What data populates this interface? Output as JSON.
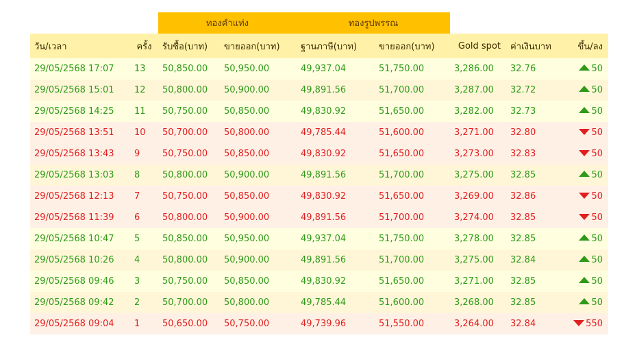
{
  "groups": {
    "bar": "ทองคำแท่ง",
    "ornament": "ทองรูปพรรณ"
  },
  "headers": {
    "datetime": "วัน/เวลา",
    "round": "ครั้ง",
    "bar_buy": "รับซื้อ(บาท)",
    "bar_sell": "ขายออก(บาท)",
    "orn_base": "ฐานภาษี(บาท)",
    "orn_sell": "ขายออก(บาท)",
    "gold_spot": "Gold spot",
    "thb": "ค่าเงินบาท",
    "change": "ขึ้น/ลง"
  },
  "colors": {
    "up": "#2e9a18",
    "down": "#e02020",
    "group_header": "#ffc000",
    "column_header": "#fff2a8"
  },
  "rows": [
    {
      "datetime": "29/05/2568 17:07",
      "round": "13",
      "bar_buy": "50,850.00",
      "bar_sell": "50,950.00",
      "orn_base": "49,937.04",
      "orn_sell": "51,750.00",
      "gold_spot": "3,286.00",
      "thb": "32.76",
      "direction": "up",
      "change": "50"
    },
    {
      "datetime": "29/05/2568 15:01",
      "round": "12",
      "bar_buy": "50,800.00",
      "bar_sell": "50,900.00",
      "orn_base": "49,891.56",
      "orn_sell": "51,700.00",
      "gold_spot": "3,287.00",
      "thb": "32.72",
      "direction": "up",
      "change": "50"
    },
    {
      "datetime": "29/05/2568 14:25",
      "round": "11",
      "bar_buy": "50,750.00",
      "bar_sell": "50,850.00",
      "orn_base": "49,830.92",
      "orn_sell": "51,650.00",
      "gold_spot": "3,282.00",
      "thb": "32.73",
      "direction": "up",
      "change": "50"
    },
    {
      "datetime": "29/05/2568 13:51",
      "round": "10",
      "bar_buy": "50,700.00",
      "bar_sell": "50,800.00",
      "orn_base": "49,785.44",
      "orn_sell": "51,600.00",
      "gold_spot": "3,271.00",
      "thb": "32.80",
      "direction": "down",
      "change": "50"
    },
    {
      "datetime": "29/05/2568 13:43",
      "round": "9",
      "bar_buy": "50,750.00",
      "bar_sell": "50,850.00",
      "orn_base": "49,830.92",
      "orn_sell": "51,650.00",
      "gold_spot": "3,273.00",
      "thb": "32.83",
      "direction": "down",
      "change": "50"
    },
    {
      "datetime": "29/05/2568 13:03",
      "round": "8",
      "bar_buy": "50,800.00",
      "bar_sell": "50,900.00",
      "orn_base": "49,891.56",
      "orn_sell": "51,700.00",
      "gold_spot": "3,275.00",
      "thb": "32.85",
      "direction": "up",
      "change": "50"
    },
    {
      "datetime": "29/05/2568 12:13",
      "round": "7",
      "bar_buy": "50,750.00",
      "bar_sell": "50,850.00",
      "orn_base": "49,830.92",
      "orn_sell": "51,650.00",
      "gold_spot": "3,269.00",
      "thb": "32.86",
      "direction": "down",
      "change": "50"
    },
    {
      "datetime": "29/05/2568 11:39",
      "round": "6",
      "bar_buy": "50,800.00",
      "bar_sell": "50,900.00",
      "orn_base": "49,891.56",
      "orn_sell": "51,700.00",
      "gold_spot": "3,274.00",
      "thb": "32.85",
      "direction": "down",
      "change": "50"
    },
    {
      "datetime": "29/05/2568 10:47",
      "round": "5",
      "bar_buy": "50,850.00",
      "bar_sell": "50,950.00",
      "orn_base": "49,937.04",
      "orn_sell": "51,750.00",
      "gold_spot": "3,278.00",
      "thb": "32.85",
      "direction": "up",
      "change": "50"
    },
    {
      "datetime": "29/05/2568 10:26",
      "round": "4",
      "bar_buy": "50,800.00",
      "bar_sell": "50,900.00",
      "orn_base": "49,891.56",
      "orn_sell": "51,700.00",
      "gold_spot": "3,275.00",
      "thb": "32.84",
      "direction": "up",
      "change": "50"
    },
    {
      "datetime": "29/05/2568 09:46",
      "round": "3",
      "bar_buy": "50,750.00",
      "bar_sell": "50,850.00",
      "orn_base": "49,830.92",
      "orn_sell": "51,650.00",
      "gold_spot": "3,271.00",
      "thb": "32.85",
      "direction": "up",
      "change": "50"
    },
    {
      "datetime": "29/05/2568 09:42",
      "round": "2",
      "bar_buy": "50,700.00",
      "bar_sell": "50,800.00",
      "orn_base": "49,785.44",
      "orn_sell": "51,600.00",
      "gold_spot": "3,268.00",
      "thb": "32.85",
      "direction": "up",
      "change": "50"
    },
    {
      "datetime": "29/05/2568 09:04",
      "round": "1",
      "bar_buy": "50,650.00",
      "bar_sell": "50,750.00",
      "orn_base": "49,739.96",
      "orn_sell": "51,550.00",
      "gold_spot": "3,264.00",
      "thb": "32.84",
      "direction": "down",
      "change": "550"
    }
  ]
}
